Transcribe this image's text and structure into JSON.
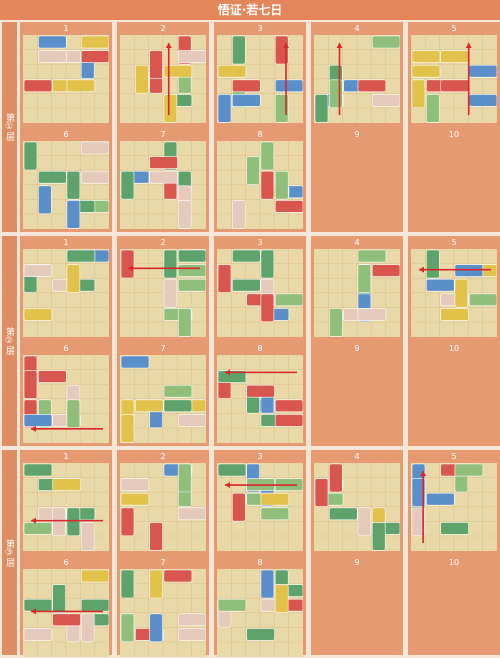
{
  "title": "悟证·若七日",
  "sections": [
    {
      "label": "第①层",
      "cells": [
        "1",
        "2",
        "3",
        "4",
        "5",
        "6",
        "7",
        "8",
        "9",
        "10"
      ]
    },
    {
      "label": "第②层",
      "cells": [
        "1",
        "2",
        "3",
        "4",
        "5",
        "6",
        "7",
        "8",
        "9",
        "10"
      ]
    },
    {
      "label": "第③层",
      "cells": [
        "1",
        "2",
        "3",
        "4",
        "5",
        "6",
        "7",
        "8",
        "9",
        "10"
      ]
    }
  ]
}
